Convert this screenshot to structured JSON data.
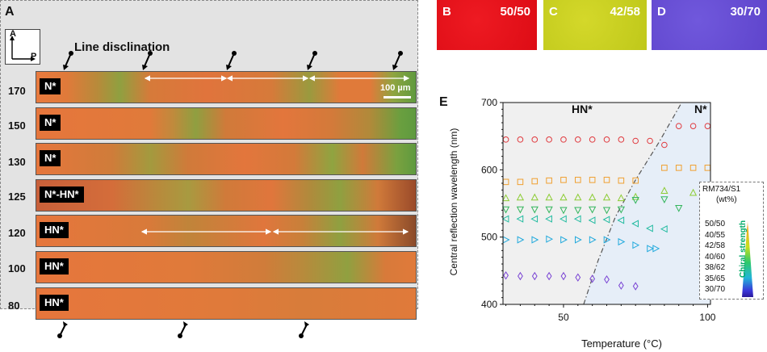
{
  "panelA": {
    "letter": "A",
    "axis_a": "A",
    "axis_p": "P",
    "disclination_label": "Line disclination",
    "scale_bar": "100 µm",
    "rows": [
      {
        "temp": "170",
        "phase": "N*"
      },
      {
        "temp": "150",
        "phase": "N*"
      },
      {
        "temp": "130",
        "phase": "N*"
      },
      {
        "temp": "125",
        "phase": "N*-HN*"
      },
      {
        "temp": "120",
        "phase": "HN*"
      },
      {
        "temp": "100",
        "phase": "HN*"
      },
      {
        "temp": "80",
        "phase": "HN*"
      }
    ]
  },
  "tiles": [
    {
      "letter": "B",
      "ratio": "50/50",
      "color": "#e8101a"
    },
    {
      "letter": "C",
      "ratio": "42/58",
      "color": "#c9d21e"
    },
    {
      "letter": "D",
      "ratio": "30/70",
      "color": "#6a4fd4"
    }
  ],
  "panelE": {
    "letter": "E",
    "region_hn": "HN*",
    "region_n": "N*",
    "legend_title1": "RM734/S1",
    "legend_title2": "(wt%)",
    "legend_bar_label": "Chiral strength",
    "legend_items": [
      "50/50",
      "40/55",
      "42/58",
      "40/60",
      "38/62",
      "35/65",
      "30/70"
    ]
  },
  "chart_data": {
    "type": "scatter",
    "title": "",
    "xlabel": "Temperature (°C)",
    "ylabel": "Central reflection wavelength (nm)",
    "xlim": [
      29,
      101
    ],
    "ylim": [
      400,
      700
    ],
    "xticks": [
      50,
      100
    ],
    "yticks": [
      400,
      500,
      600,
      700
    ],
    "boundary": [
      [
        57,
        400
      ],
      [
        62,
        465
      ],
      [
        68,
        530
      ],
      [
        75,
        585
      ],
      [
        83,
        640
      ],
      [
        91,
        700
      ]
    ],
    "series": [
      {
        "name": "50/50",
        "marker": "circle",
        "color": "#e0393e",
        "x": [
          30,
          35,
          40,
          45,
          50,
          55,
          60,
          65,
          70,
          75,
          80,
          85,
          90,
          95,
          100
        ],
        "y": [
          645,
          645,
          645,
          645,
          645,
          645,
          645,
          645,
          645,
          643,
          643,
          637,
          665,
          665,
          665
        ]
      },
      {
        "name": "40/55",
        "marker": "square",
        "color": "#f0a030",
        "x": [
          30,
          35,
          40,
          45,
          50,
          55,
          60,
          65,
          70,
          75,
          85,
          90,
          95,
          100
        ],
        "y": [
          582,
          582,
          583,
          584,
          585,
          585,
          585,
          585,
          584,
          584,
          603,
          603,
          603,
          603
        ]
      },
      {
        "name": "42/58",
        "marker": "triangle-up",
        "color": "#8ccc33",
        "x": [
          30,
          35,
          40,
          45,
          50,
          55,
          60,
          65,
          70,
          75,
          85,
          95
        ],
        "y": [
          558,
          559,
          559,
          559,
          559,
          559,
          559,
          559,
          558,
          560,
          569,
          566
        ]
      },
      {
        "name": "40/60",
        "marker": "triangle-down",
        "color": "#33b55c",
        "x": [
          30,
          35,
          40,
          45,
          50,
          55,
          60,
          65,
          70,
          75,
          85,
          90
        ],
        "y": [
          541,
          541,
          541,
          541,
          540,
          540,
          541,
          540,
          541,
          555,
          556,
          543
        ]
      },
      {
        "name": "38/62",
        "marker": "triangle-left",
        "color": "#22bba0",
        "x": [
          30,
          35,
          40,
          45,
          50,
          55,
          60,
          65,
          70,
          75,
          80,
          85
        ],
        "y": [
          527,
          527,
          527,
          527,
          527,
          527,
          525,
          526,
          525,
          520,
          513,
          512
        ]
      },
      {
        "name": "35/65",
        "marker": "triangle-right",
        "color": "#22aadd",
        "x": [
          30,
          35,
          40,
          45,
          50,
          55,
          60,
          65,
          70,
          75,
          80,
          82
        ],
        "y": [
          496,
          496,
          496,
          497,
          496,
          496,
          496,
          496,
          493,
          488,
          483,
          483
        ]
      },
      {
        "name": "30/70",
        "marker": "diamond",
        "color": "#7a44d4",
        "x": [
          30,
          35,
          40,
          45,
          50,
          55,
          60,
          65,
          70,
          75
        ],
        "y": [
          443,
          442,
          442,
          442,
          442,
          440,
          438,
          437,
          428,
          427
        ]
      }
    ]
  }
}
